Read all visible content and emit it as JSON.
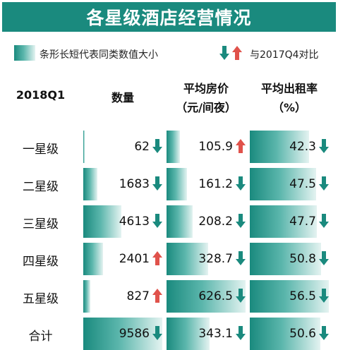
{
  "title": "各星级酒店经营情况",
  "legend": {
    "bar_text": "条形长短代表同类数值大小",
    "arrow_text": "与2017Q4对比"
  },
  "colors": {
    "teal": "#1a8a7e",
    "up": "#e0524b",
    "down": "#1a8a7e"
  },
  "headers": {
    "period": "2018Q1",
    "count": "数量",
    "price_l1": "平均房价",
    "price_l2": "（元/间夜）",
    "occ_l1": "平均出租率",
    "occ_l2": "（%）"
  },
  "chart_data": {
    "type": "table",
    "rows": [
      {
        "label": "一星级",
        "count": 62,
        "count_text": "62",
        "count_dir": "down",
        "price": 105.9,
        "price_text": "105.9",
        "price_dir": "up",
        "occ": 42.3,
        "occ_text": "42.3",
        "occ_dir": "down"
      },
      {
        "label": "二星级",
        "count": 1683,
        "count_text": "1683",
        "count_dir": "down",
        "price": 161.2,
        "price_text": "161.2",
        "price_dir": "down",
        "occ": 47.5,
        "occ_text": "47.5",
        "occ_dir": "down"
      },
      {
        "label": "三星级",
        "count": 4613,
        "count_text": "4613",
        "count_dir": "down",
        "price": 208.2,
        "price_text": "208.2",
        "price_dir": "down",
        "occ": 47.7,
        "occ_text": "47.7",
        "occ_dir": "down"
      },
      {
        "label": "四星级",
        "count": 2401,
        "count_text": "2401",
        "count_dir": "up",
        "price": 328.7,
        "price_text": "328.7",
        "price_dir": "down",
        "occ": 50.8,
        "occ_text": "50.8",
        "occ_dir": "down"
      },
      {
        "label": "五星级",
        "count": 827,
        "count_text": "827",
        "count_dir": "up",
        "price": 626.5,
        "price_text": "626.5",
        "price_dir": "down",
        "occ": 56.5,
        "occ_text": "56.5",
        "occ_dir": "down"
      },
      {
        "label": "合计",
        "count": 9586,
        "count_text": "9586",
        "count_dir": "down",
        "price": 343.1,
        "price_text": "343.1",
        "price_dir": "down",
        "occ": 50.6,
        "occ_text": "50.6",
        "occ_dir": "down"
      }
    ]
  }
}
